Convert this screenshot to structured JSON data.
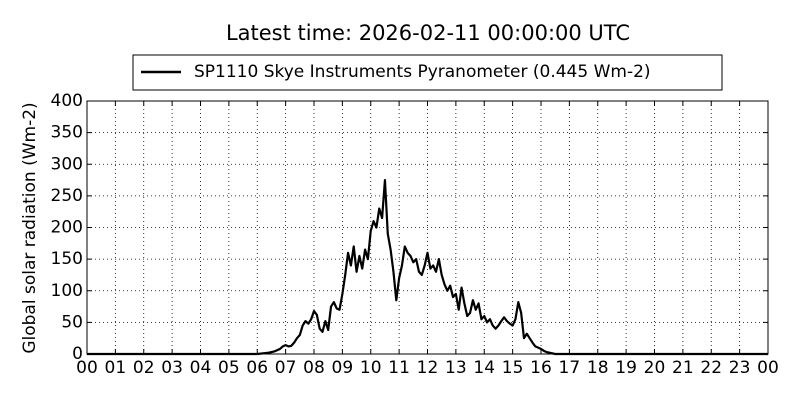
{
  "chart_data": {
    "type": "line",
    "title": "Latest time: 2026-02-11 00:00:00 UTC",
    "ylabel": "Global solar radiation (Wm-2)",
    "x": [
      0,
      6,
      6.2,
      6.4,
      6.6,
      6.8,
      6.9,
      7.0,
      7.1,
      7.2,
      7.3,
      7.4,
      7.5,
      7.6,
      7.7,
      7.8,
      7.9,
      8.0,
      8.1,
      8.2,
      8.3,
      8.4,
      8.5,
      8.6,
      8.7,
      8.8,
      8.9,
      9.0,
      9.1,
      9.2,
      9.3,
      9.4,
      9.5,
      9.6,
      9.7,
      9.8,
      9.9,
      10.0,
      10.1,
      10.2,
      10.3,
      10.4,
      10.5,
      10.6,
      10.7,
      10.8,
      10.9,
      11.0,
      11.1,
      11.2,
      11.3,
      11.4,
      11.5,
      11.6,
      11.7,
      11.8,
      11.9,
      12.0,
      12.1,
      12.2,
      12.3,
      12.4,
      12.5,
      12.6,
      12.7,
      12.8,
      12.9,
      13.0,
      13.1,
      13.2,
      13.3,
      13.4,
      13.5,
      13.6,
      13.7,
      13.8,
      13.9,
      14.0,
      14.1,
      14.2,
      14.3,
      14.4,
      14.5,
      14.6,
      14.7,
      14.8,
      14.9,
      15.0,
      15.1,
      15.2,
      15.3,
      15.4,
      15.5,
      15.6,
      15.7,
      15.8,
      15.9,
      16.0,
      16.1,
      16.2,
      16.3,
      16.4,
      16.5,
      24
    ],
    "series": [
      {
        "name": "SP1110 Skye Instruments Pyranometer (0.445 Wm-2)",
        "color": "#000000",
        "values": [
          0,
          0,
          1,
          2,
          4,
          8,
          12,
          14,
          12,
          13,
          18,
          25,
          30,
          45,
          52,
          48,
          55,
          68,
          62,
          40,
          35,
          52,
          38,
          75,
          82,
          72,
          70,
          95,
          125,
          160,
          140,
          170,
          130,
          155,
          135,
          165,
          150,
          195,
          210,
          200,
          230,
          215,
          275,
          190,
          165,
          130,
          85,
          120,
          140,
          170,
          160,
          155,
          145,
          150,
          130,
          125,
          140,
          160,
          135,
          140,
          130,
          150,
          125,
          110,
          100,
          108,
          90,
          95,
          70,
          105,
          80,
          60,
          65,
          85,
          70,
          80,
          55,
          60,
          50,
          55,
          45,
          40,
          45,
          52,
          58,
          52,
          48,
          45,
          55,
          82,
          65,
          25,
          32,
          25,
          18,
          12,
          10,
          8,
          5,
          3,
          2,
          1,
          0,
          0
        ]
      }
    ],
    "xlim": [
      0,
      24
    ],
    "xticks": [
      {
        "value": 0,
        "label": "00"
      },
      {
        "value": 1,
        "label": "01"
      },
      {
        "value": 2,
        "label": "02"
      },
      {
        "value": 3,
        "label": "03"
      },
      {
        "value": 4,
        "label": "04"
      },
      {
        "value": 5,
        "label": "05"
      },
      {
        "value": 6,
        "label": "06"
      },
      {
        "value": 7,
        "label": "07"
      },
      {
        "value": 8,
        "label": "08"
      },
      {
        "value": 9,
        "label": "09"
      },
      {
        "value": 10,
        "label": "10"
      },
      {
        "value": 11,
        "label": "11"
      },
      {
        "value": 12,
        "label": "12"
      },
      {
        "value": 13,
        "label": "13"
      },
      {
        "value": 14,
        "label": "14"
      },
      {
        "value": 15,
        "label": "15"
      },
      {
        "value": 16,
        "label": "16"
      },
      {
        "value": 17,
        "label": "17"
      },
      {
        "value": 18,
        "label": "18"
      },
      {
        "value": 19,
        "label": "19"
      },
      {
        "value": 20,
        "label": "20"
      },
      {
        "value": 21,
        "label": "21"
      },
      {
        "value": 22,
        "label": "22"
      },
      {
        "value": 23,
        "label": "23"
      },
      {
        "value": 24,
        "label": "00"
      }
    ],
    "ylim": [
      0,
      400
    ],
    "yticks": [
      0,
      50,
      100,
      150,
      200,
      250,
      300,
      350,
      400
    ],
    "grid": true,
    "legend": "top"
  }
}
